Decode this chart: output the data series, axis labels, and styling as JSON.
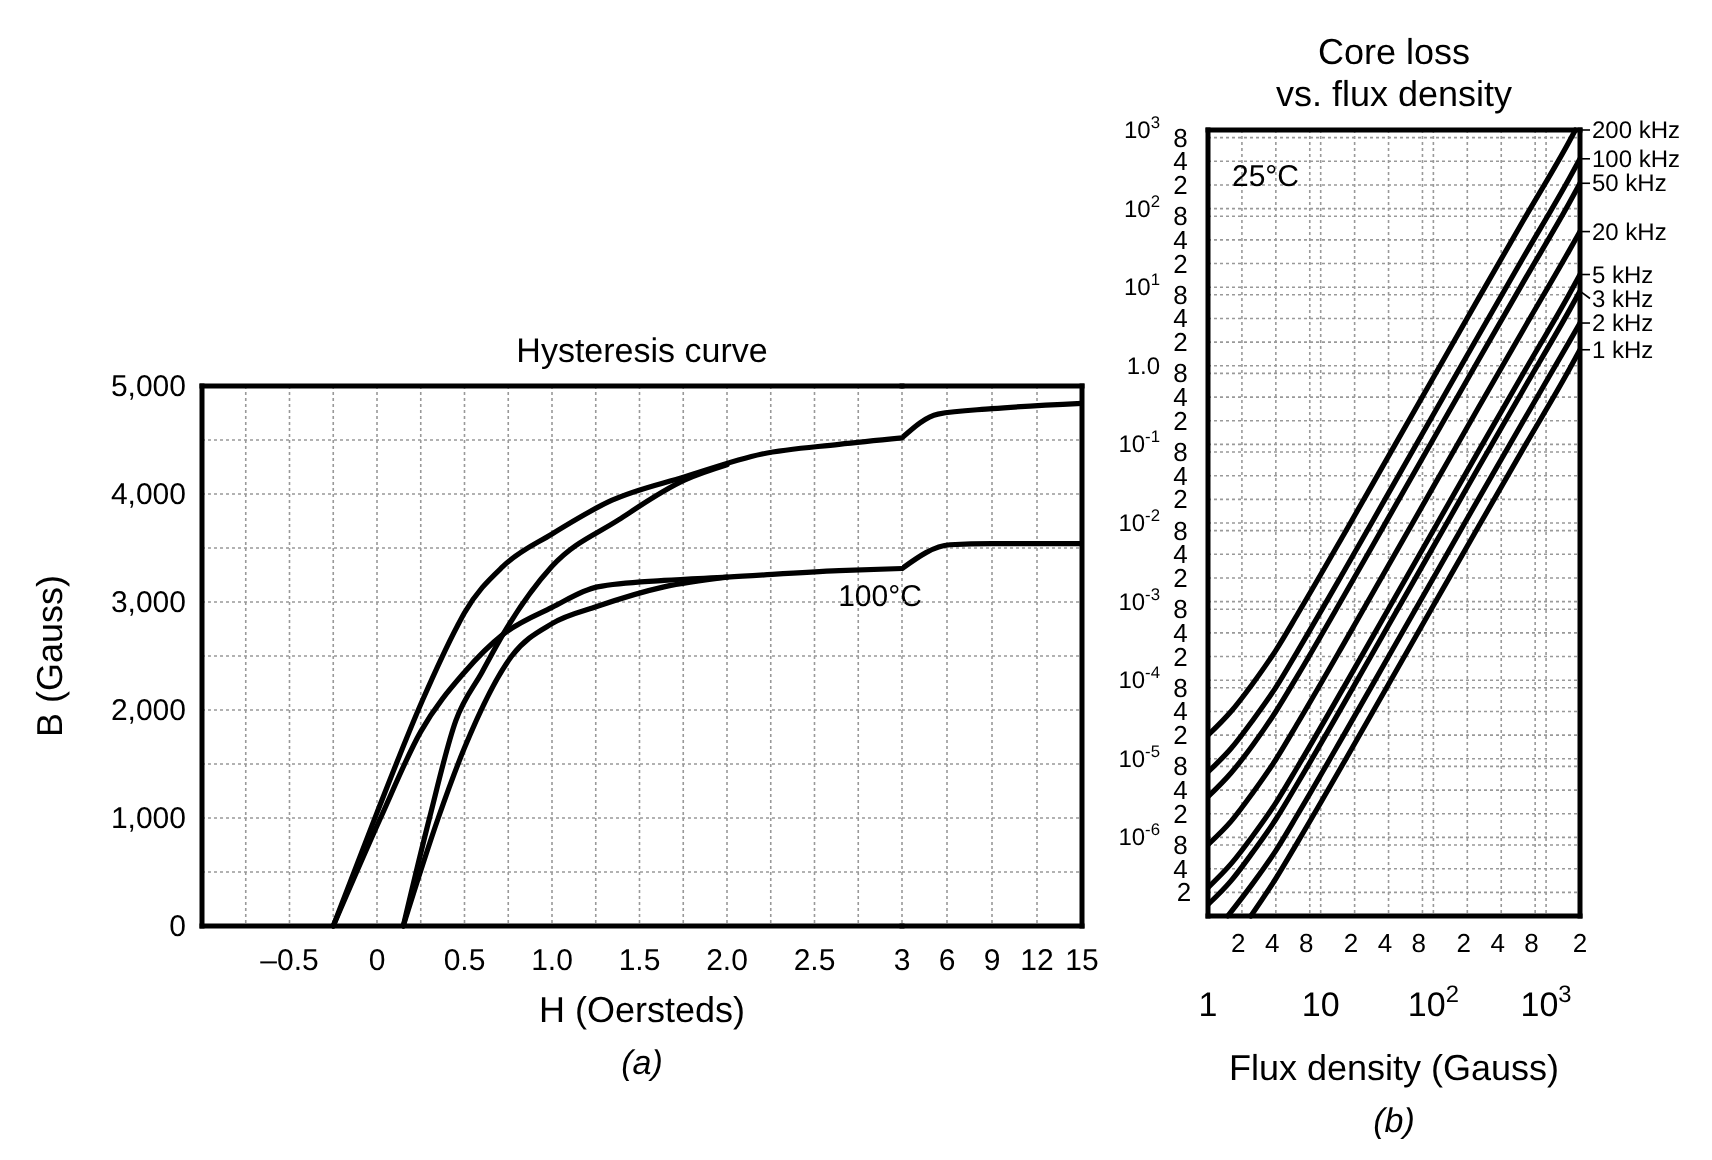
{
  "chart_data": [
    {
      "type": "line",
      "title": "Hysteresis curve",
      "xlabel": "H (Oersteds)",
      "ylabel": "B (Gauss)",
      "xlim": [
        -1,
        3
      ],
      "ylim": [
        0,
        5000
      ],
      "xticks": [
        {
          "value": -0.75,
          "label": null
        },
        {
          "value": -0.5,
          "label": "–0.5"
        },
        {
          "value": -0.25,
          "label": null
        },
        0,
        {
          "value": 0.25,
          "label": null
        },
        0.5,
        {
          "value": 0.75,
          "label": null
        },
        {
          "value": 1,
          "label": "1.0"
        },
        {
          "value": 1.25,
          "label": null
        },
        1.5,
        {
          "value": 1.75,
          "label": null
        },
        {
          "value": 2,
          "label": "2.0"
        },
        {
          "value": 2.25,
          "label": null
        },
        2.5,
        {
          "value": 2.75,
          "label": null
        },
        3
      ],
      "yticks": [
        0,
        {
          "value": 500,
          "label": null
        },
        {
          "value": 1000,
          "label": "1,000"
        },
        {
          "value": 1500,
          "label": null
        },
        {
          "value": 2000,
          "label": "2,000"
        },
        {
          "value": 2500,
          "label": null
        },
        {
          "value": 3000,
          "label": "3,000"
        },
        {
          "value": 3500,
          "label": null
        },
        {
          "value": 4000,
          "label": "4,000"
        },
        {
          "value": 4500,
          "label": null
        },
        {
          "value": 5000,
          "label": "5,000"
        }
      ],
      "grid": true,
      "series": [
        {
          "color": "#000000",
          "x": [
            -0.25,
            0,
            0.26,
            0.46,
            0.5,
            0.72,
            1.0,
            1.34,
            1.76,
            2.2,
            2.64,
            3.0
          ],
          "values": [
            0,
            1050,
            2090,
            2780,
            2900,
            3330,
            3630,
            3940,
            4160,
            4370,
            4460,
            4520
          ]
        },
        {
          "color": "#000000",
          "x": [
            0.15,
            0.3,
            0.45,
            0.6,
            0.72,
            1.0,
            1.38,
            1.76,
            2.0
          ],
          "values": [
            0,
            1000,
            1900,
            2350,
            2700,
            3330,
            3760,
            4130,
            4270
          ]
        },
        {
          "color": "#000000",
          "x": [
            -0.25,
            0.02,
            0.25,
            0.5,
            0.72,
            1.0,
            1.26,
            1.64,
            2.0,
            2.64,
            3.0
          ],
          "values": [
            0,
            1000,
            1800,
            2350,
            2700,
            2950,
            3140,
            3200,
            3230,
            3290,
            3310
          ]
        },
        {
          "color": "#000000",
          "x": [
            0.15,
            0.35,
            0.5,
            0.77,
            1.0,
            1.26,
            1.64,
            2.0
          ],
          "values": [
            0,
            1000,
            1650,
            2500,
            2800,
            2960,
            3140,
            3230
          ]
        }
      ],
      "annotations": [
        "100°C",
        "(a)"
      ]
    },
    {
      "type": "line",
      "xlim": [
        3,
        15
      ],
      "ylim": [
        0,
        5000
      ],
      "xticks": [
        6,
        9,
        12,
        15
      ],
      "yticks": [
        0,
        500,
        1000,
        1500,
        2000,
        2500,
        3000,
        3500,
        4000,
        4500,
        5000
      ],
      "tick_labels": "x",
      "grid": true,
      "series": [
        {
          "color": "#000000",
          "x": [
            3,
            5.4,
            9,
            15
          ],
          "values": [
            4520,
            4740,
            4790,
            4840
          ]
        },
        {
          "color": "#000000",
          "x": [
            3,
            6.2,
            9,
            15
          ],
          "values": [
            3310,
            3530,
            3540,
            3540
          ]
        }
      ]
    },
    {
      "type": "line",
      "title": "Core loss\nvs. flux density",
      "xlabel": "Flux density (Gauss)",
      "log": "xy",
      "xlim": [
        1,
        2000
      ],
      "ylim": [
        1e-07,
        1000
      ],
      "xticks": [
        1,
        {
          "value": 2,
          "label": null
        },
        {
          "value": 4,
          "label": null
        },
        {
          "value": 8,
          "label": null
        },
        10,
        {
          "value": 20,
          "label": null
        },
        {
          "value": 40,
          "label": null
        },
        {
          "value": 80,
          "label": null
        },
        {
          "value": 100,
          "label": "10$^{2}$"
        },
        {
          "value": 200,
          "label": null
        },
        {
          "value": 400,
          "label": null
        },
        {
          "value": 800,
          "label": null
        },
        {
          "value": 1000,
          "label": "10$^{3}$"
        },
        {
          "value": 2000,
          "label": null
        }
      ],
      "yticks": [
        {
          "value": 2e-07,
          "label": null
        },
        {
          "value": 4e-07,
          "label": null
        },
        {
          "value": 8e-07,
          "label": null
        },
        {
          "value": 1e-06,
          "label": "10$^{-6}$"
        },
        {
          "value": 2e-06,
          "label": null
        },
        {
          "value": 4e-06,
          "label": null
        },
        {
          "value": 8e-06,
          "label": null
        },
        {
          "value": 1e-05,
          "label": "10$^{-5}$"
        },
        {
          "value": 2e-05,
          "label": null
        },
        {
          "value": 4e-05,
          "label": null
        },
        {
          "value": 8e-05,
          "label": null
        },
        {
          "value": 0.0001,
          "label": "10$^{-4}$"
        },
        {
          "value": 0.0002,
          "label": null
        },
        {
          "value": 0.0004,
          "label": null
        },
        {
          "value": 0.0008,
          "label": null
        },
        {
          "value": 0.001,
          "label": "10$^{-3}$"
        },
        {
          "value": 0.002,
          "label": null
        },
        {
          "value": 0.004,
          "label": null
        },
        {
          "value": 0.008,
          "label": null
        },
        {
          "value": 0.01,
          "label": "10$^{-2}$"
        },
        {
          "value": 0.02,
          "label": null
        },
        {
          "value": 0.04,
          "label": null
        },
        {
          "value": 0.08,
          "label": null
        },
        {
          "value": 0.1,
          "label": "10$^{-1}$"
        },
        {
          "value": 0.2,
          "label": null
        },
        {
          "value": 0.4,
          "label": null
        },
        {
          "value": 0.8,
          "label": null
        },
        {
          "value": 1,
          "label": "1.0"
        },
        {
          "value": 2,
          "label": null
        },
        {
          "value": 4,
          "label": null
        },
        {
          "value": 8,
          "label": null
        },
        {
          "value": 10,
          "label": "10$^{1}$"
        },
        {
          "value": 20,
          "label": null
        },
        {
          "value": 40,
          "label": null
        },
        {
          "value": 80,
          "label": null
        },
        {
          "value": 100,
          "label": "10$^{2}$"
        },
        {
          "value": 200,
          "label": null
        },
        {
          "value": 400,
          "label": null
        },
        {
          "value": 800,
          "label": null
        },
        {
          "value": 1000,
          "label": "10$^{3}$"
        }
      ],
      "grid": true,
      "legend": "right",
      "series": [
        {
          "name": "200 kHz",
          "color": "#000000",
          "x": [
            1,
            1.6,
            2.5,
            4,
            6.3,
            16,
            40,
            100,
            250,
            630,
            1600,
            1820
          ],
          "values": [
            2e-05,
            4e-05,
            9.1e-05,
            0.00024,
            0.00071,
            0.0071,
            0.071,
            0.71,
            7.1,
            71,
            710,
            1000
          ]
        },
        {
          "name": "100 kHz",
          "color": "#000000",
          "x": [
            1,
            1.6,
            2.5,
            4,
            6.3,
            16,
            40,
            100,
            250,
            630,
            1600,
            2000
          ],
          "values": [
            6.8e-06,
            1.35e-05,
            3.1e-05,
            8.1e-05,
            0.00024,
            0.0024,
            0.024,
            0.24,
            2.4,
            24,
            240,
            430
          ]
        },
        {
          "name": "50 kHz",
          "color": "#000000",
          "x": [
            1,
            1.6,
            2.5,
            4,
            6.3,
            16,
            40,
            100,
            250,
            630,
            1600,
            2000
          ],
          "values": [
            3.3e-06,
            6.6e-06,
            1.5e-05,
            4e-05,
            0.000117,
            0.00117,
            0.0117,
            0.117,
            1.17,
            11.7,
            117,
            210
          ]
        },
        {
          "name": "20 kHz",
          "color": "#000000",
          "x": [
            1,
            1.6,
            2.5,
            4,
            6.3,
            16,
            40,
            100,
            250,
            630,
            1600,
            2000
          ],
          "values": [
            8.1e-07,
            1.6e-06,
            3.7e-06,
            9.8e-06,
            2.9e-05,
            0.00029,
            0.0029,
            0.029,
            0.29,
            2.9,
            29,
            51
          ]
        },
        {
          "name": "5 kHz",
          "color": "#000000",
          "x": [
            1,
            1.6,
            2.5,
            4,
            6.3,
            16,
            40,
            100,
            250,
            630,
            1600,
            2000
          ],
          "values": [
            2.3e-07,
            4.6e-07,
            1.05e-06,
            2.75e-06,
            8.1e-06,
            8.1e-05,
            0.00081,
            0.0081,
            0.081,
            0.81,
            8.1,
            14.5
          ]
        },
        {
          "name": "3 kHz",
          "color": "#000000",
          "x": [
            1,
            1.6,
            2.5,
            4,
            6.3,
            16,
            40,
            100,
            250,
            630,
            1600,
            2000
          ],
          "values": [
            1.4e-07,
            2.8e-07,
            6.5e-07,
            1.7e-06,
            5e-06,
            5e-05,
            0.0005,
            0.005,
            0.05,
            0.5,
            5.0,
            8.9
          ]
        },
        {
          "name": "2 kHz",
          "color": "#000000",
          "x": [
            1.5,
            2.5,
            4,
            6.3,
            16,
            40,
            100,
            250,
            630,
            1600,
            2000
          ],
          "values": [
            1e-07,
            2.6e-07,
            6.8e-07,
            2e-06,
            2e-05,
            0.0002,
            0.002,
            0.02,
            0.2,
            2.0,
            3.5
          ]
        },
        {
          "name": "1 kHz",
          "color": "#000000",
          "x": [
            2.4,
            4,
            6.3,
            16,
            40,
            100,
            250,
            630,
            1600,
            2000
          ],
          "values": [
            1e-07,
            3e-07,
            8.9e-07,
            8.9e-06,
            8.9e-05,
            0.00089,
            0.0089,
            0.089,
            0.89,
            1.6
          ]
        }
      ],
      "annotations": [
        "25°C",
        "2 4 8 2 4 8 2 4 8 2",
        "8 4 2 8 4 2 8 4 2 8 4 2 8 4 2 8 4 2 8 4 2 8 4 2 8 4 2 8 4 2",
        "(b)"
      ]
    }
  ]
}
